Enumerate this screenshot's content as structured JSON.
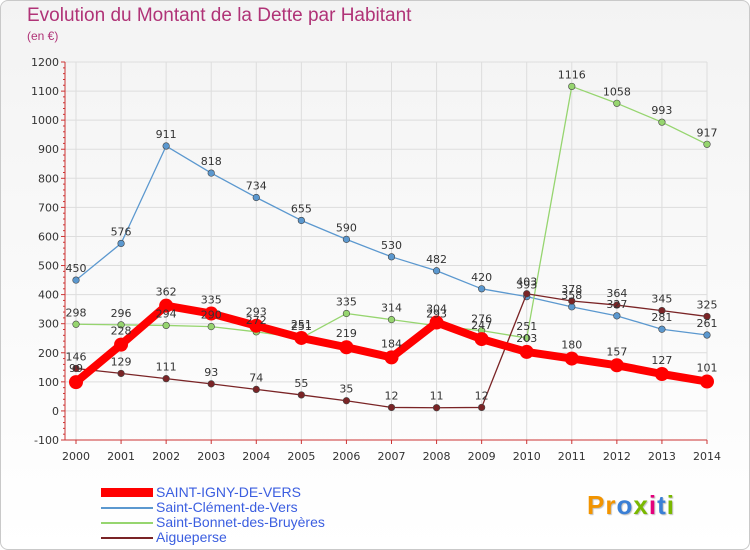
{
  "title": "Evolution du Montant de la Dette par Habitant",
  "subtitle": "(en €)",
  "logo": {
    "text": "Proxiti",
    "colors": [
      "#f29400",
      "#3a7fd5",
      "#7ab800",
      "#e4007c"
    ]
  },
  "chart_data": {
    "type": "line",
    "categories": [
      "2000",
      "2001",
      "2002",
      "2003",
      "2004",
      "2005",
      "2006",
      "2007",
      "2008",
      "2009",
      "2010",
      "2011",
      "2012",
      "2013",
      "2014"
    ],
    "ylim": [
      -100,
      1200
    ],
    "yticks": [
      -100,
      0,
      100,
      200,
      300,
      400,
      500,
      600,
      700,
      800,
      900,
      1000,
      1100,
      1200
    ],
    "grid": true,
    "legend_position": "bottom",
    "series": [
      {
        "name": "Saint-Clément-de-Vers",
        "color": "#5b98cf",
        "values": [
          450,
          576,
          911,
          818,
          734,
          655,
          590,
          530,
          482,
          420,
          393,
          358,
          327,
          281,
          261
        ],
        "labels": [
          "450",
          "576",
          "911",
          "818",
          "734",
          "655",
          "590",
          "530",
          "482",
          "420",
          "393",
          "358",
          "327",
          "281",
          "261"
        ]
      },
      {
        "name": "Saint-Bonnet-des-Bruyères",
        "color": "#96d56f",
        "values": [
          298,
          296,
          294,
          290,
          272,
          251,
          335,
          314,
          293,
          276,
          251,
          1116,
          1058,
          993,
          917
        ],
        "labels": [
          "298",
          "296",
          "294",
          "290",
          "272",
          "251",
          "335",
          "314",
          "293",
          "276",
          "251",
          "1116",
          "1058",
          "993",
          "917"
        ]
      },
      {
        "name": "Aigueperse",
        "color": "#7a2426",
        "values": [
          146,
          129,
          111,
          93,
          74,
          55,
          35,
          12,
          11,
          12,
          403,
          378,
          364,
          345,
          325
        ],
        "labels": [
          "146",
          "129",
          "111",
          "93",
          "74",
          "55",
          "35",
          "12",
          "11",
          "12",
          "403",
          "378",
          "364",
          "345",
          "325"
        ]
      },
      {
        "name": "SAINT-IGNY-DE-VERS",
        "color": "#ff0000",
        "thick": true,
        "values": [
          99,
          228,
          362,
          335,
          293,
          251,
          219,
          184,
          304,
          247,
          203,
          180,
          157,
          127,
          101
        ],
        "labels": [
          "99",
          "228",
          "362",
          "335",
          "293",
          "251",
          "219",
          "184",
          "304",
          "247",
          "203",
          "180",
          "157",
          "127",
          "101"
        ]
      }
    ]
  },
  "legend": [
    {
      "name": "SAINT-IGNY-DE-VERS",
      "color": "#ff0000",
      "thick": true
    },
    {
      "name": "Saint-Clément-de-Vers",
      "color": "#5b98cf",
      "thick": false
    },
    {
      "name": "Saint-Bonnet-des-Bruyères",
      "color": "#96d56f",
      "thick": false
    },
    {
      "name": "Aigueperse",
      "color": "#7a2426",
      "thick": false
    }
  ]
}
